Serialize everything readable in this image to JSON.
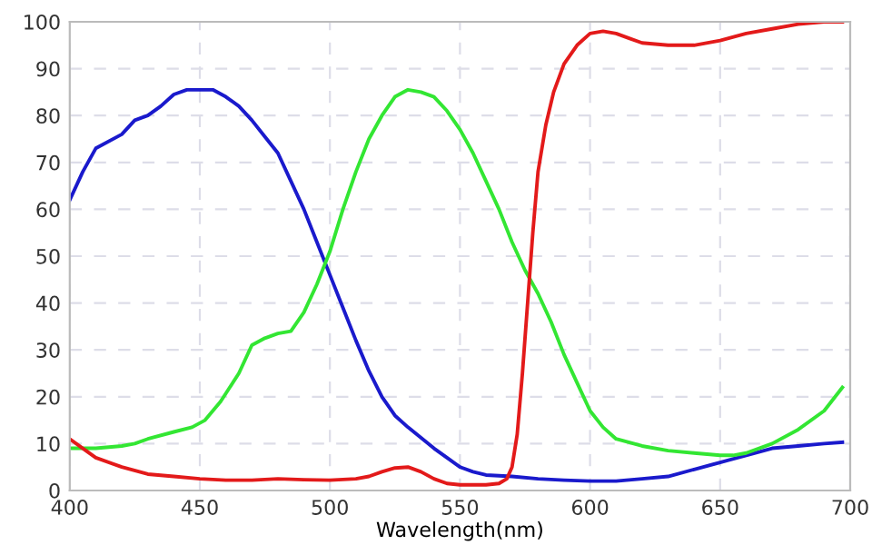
{
  "chart_data": {
    "type": "line",
    "xlabel": "Wavelength(nm)",
    "xlim": [
      400,
      700
    ],
    "ylim": [
      0,
      100
    ],
    "xticks": [
      400,
      450,
      500,
      550,
      600,
      650,
      700
    ],
    "yticks": [
      0,
      10,
      20,
      30,
      40,
      50,
      60,
      70,
      80,
      90,
      100
    ],
    "grid": true,
    "legend": false,
    "line_style": "solid",
    "series": [
      {
        "color": "#1a1acc",
        "x": [
          400,
          405,
          410,
          420,
          425,
          430,
          435,
          440,
          445,
          450,
          455,
          460,
          465,
          470,
          475,
          480,
          485,
          490,
          495,
          500,
          505,
          510,
          515,
          520,
          525,
          530,
          540,
          545,
          550,
          555,
          560,
          570,
          580,
          590,
          600,
          610,
          620,
          630,
          640,
          650,
          660,
          670,
          680,
          690,
          697
        ],
        "values": [
          62,
          68,
          73,
          76,
          79,
          80,
          82,
          84.5,
          85.5,
          85.5,
          85.5,
          84,
          82,
          79,
          75.5,
          72,
          66,
          60,
          53,
          46,
          39,
          32,
          25.5,
          20,
          16,
          13.5,
          9,
          7,
          5,
          4,
          3.3,
          3,
          2.5,
          2.2,
          2,
          2,
          2.5,
          3,
          4.5,
          6,
          7.5,
          9,
          9.5,
          10,
          10.3
        ]
      },
      {
        "color": "#33e633",
        "x": [
          400,
          410,
          420,
          425,
          430,
          440,
          447,
          452,
          458,
          465,
          470,
          475,
          480,
          485,
          490,
          495,
          500,
          505,
          510,
          515,
          520,
          525,
          530,
          535,
          540,
          545,
          550,
          555,
          560,
          565,
          570,
          575,
          580,
          585,
          590,
          595,
          600,
          605,
          610,
          620,
          630,
          640,
          650,
          655,
          660,
          670,
          680,
          690,
          697
        ],
        "values": [
          9,
          9,
          9.5,
          10,
          11,
          12.5,
          13.5,
          15,
          19,
          25,
          31,
          32.5,
          33.5,
          34,
          38,
          44,
          51,
          60,
          68,
          75,
          80,
          84,
          85.5,
          85,
          84,
          81,
          77,
          72,
          66,
          60,
          53,
          47,
          42,
          36,
          29,
          23,
          17,
          13.5,
          11,
          9.5,
          8.5,
          8,
          7.5,
          7.5,
          8,
          10,
          13,
          17,
          22
        ]
      },
      {
        "color": "#e31a1a",
        "x": [
          400,
          405,
          410,
          420,
          430,
          440,
          450,
          460,
          470,
          480,
          490,
          500,
          510,
          515,
          520,
          525,
          530,
          535,
          540,
          545,
          550,
          560,
          565,
          568,
          570,
          572,
          574,
          576,
          578,
          580,
          583,
          586,
          590,
          595,
          600,
          605,
          610,
          615,
          620,
          630,
          640,
          650,
          660,
          670,
          680,
          690,
          697
        ],
        "values": [
          11,
          9,
          7,
          5,
          3.5,
          3,
          2.5,
          2.2,
          2.2,
          2.5,
          2.3,
          2.2,
          2.5,
          3,
          4,
          4.8,
          5,
          4,
          2.5,
          1.5,
          1.2,
          1.2,
          1.5,
          2.5,
          5,
          12,
          25,
          40,
          55,
          68,
          78,
          85,
          91,
          95,
          97.5,
          98,
          97.5,
          96.5,
          95.5,
          95,
          95,
          96,
          97.5,
          98.5,
          99.5,
          100,
          100
        ]
      }
    ]
  }
}
